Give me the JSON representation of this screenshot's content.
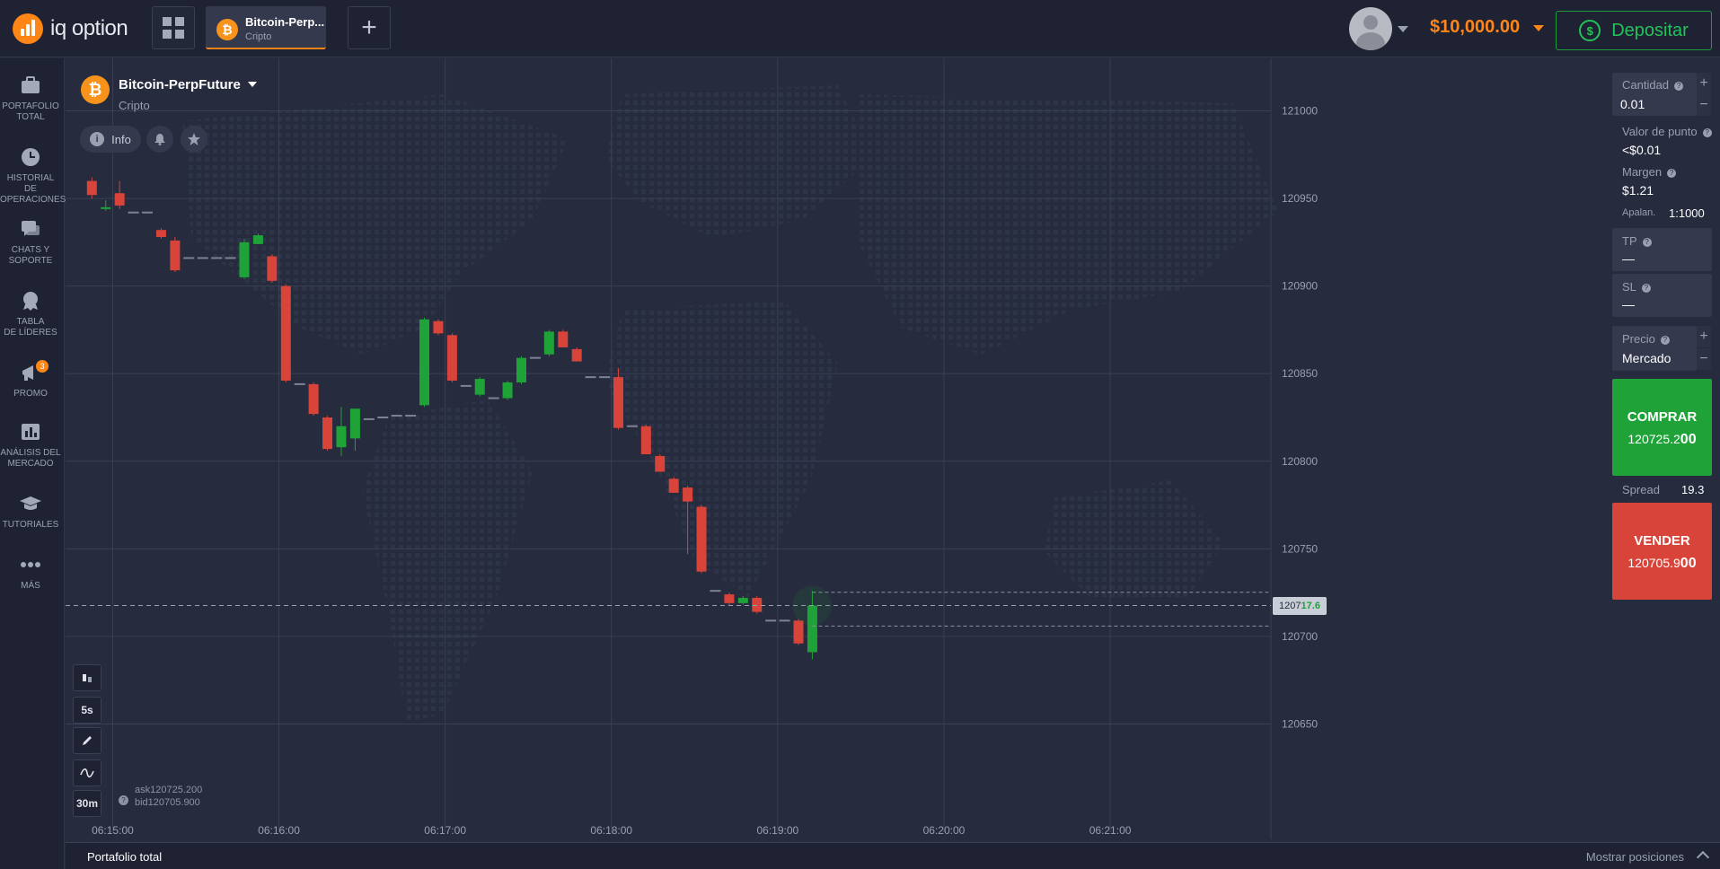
{
  "header": {
    "logo_text": "iq option",
    "asset_tab": {
      "name": "Bitcoin-Perp...",
      "category": "Cripto"
    },
    "add_label": "+",
    "balance": "$10,000.00",
    "deposit_label": "Depositar",
    "deposit_icon": "$"
  },
  "sidebar": {
    "items": [
      {
        "label1": "PORTAFOLIO",
        "label2": "TOTAL",
        "icon": "briefcase-icon"
      },
      {
        "label1": "HISTORIAL DE",
        "label2": "OPERACIONES",
        "icon": "clock-icon"
      },
      {
        "label1": "CHATS Y",
        "label2": "SOPORTE",
        "icon": "chat-icon"
      },
      {
        "label1": "TABLA",
        "label2": "DE LÍDERES",
        "icon": "trophy-icon"
      },
      {
        "label1": "PROMO",
        "label2": "",
        "icon": "megaphone-icon",
        "badge": "3"
      },
      {
        "label1": "ANÁLISIS DEL",
        "label2": "MERCADO",
        "icon": "chart-icon"
      },
      {
        "label1": "TUTORIALES",
        "label2": "",
        "icon": "graduation-cap-icon"
      },
      {
        "label1": "MÁS",
        "label2": "",
        "icon": "more-dots-icon"
      }
    ]
  },
  "chart_header": {
    "title": "Bitcoin-PerpFuture",
    "subtitle": "Cripto",
    "info_label": "Info",
    "info_icon": "i"
  },
  "toolbar": {
    "timeframe": "5s",
    "period": "30m",
    "help": "?"
  },
  "quotes": {
    "ask": "ask120725.200",
    "bid": "bid120705.900"
  },
  "current_price": {
    "prefix": "1207",
    "suffix": "17.6"
  },
  "panel": {
    "amount_label": "Cantidad",
    "amount_value": "0.01",
    "point_value_label": "Valor de punto",
    "point_value": "<$0.01",
    "margin_label": "Margen",
    "margin_value": "$1.21",
    "leverage_label": "Apalan.",
    "leverage_value": "1:1000",
    "tp_label": "TP",
    "tp_value": "—",
    "sl_label": "SL",
    "sl_value": "—",
    "price_label": "Precio",
    "price_value": "Mercado",
    "plus": "+",
    "minus": "−",
    "help": "?",
    "buy_label": "COMPRAR",
    "buy_price": "120725.2",
    "buy_price_tail": "00",
    "spread_label": "Spread",
    "spread_value": "19.3",
    "sell_label": "VENDER",
    "sell_price": "120705.9",
    "sell_price_tail": "00"
  },
  "footer": {
    "left": "Portafolio total",
    "right": "Mostrar posiciones"
  },
  "colors": {
    "up": "#1fa339",
    "down": "#d9443a",
    "accent": "#ff8516",
    "background": "#262b3e"
  },
  "chart_data": {
    "type": "candlestick",
    "ylim": [
      120620,
      121030
    ],
    "y_ticks": [
      121000,
      120950,
      120900,
      120850,
      120800,
      120750,
      120700,
      120650
    ],
    "x_ticks": [
      "06:15:00",
      "06:16:00",
      "06:17:00",
      "06:18:00",
      "06:19:00",
      "06:20:00",
      "06:21:00"
    ],
    "x_tick_seconds": [
      0,
      60,
      120,
      180,
      240,
      300,
      360
    ],
    "x_range_seconds": [
      -17,
      418
    ],
    "current_price": 120717.6,
    "ask": 120725.2,
    "bid": 120705.9,
    "candles": [
      {
        "t": -7.5,
        "o": 120960,
        "h": 120962,
        "l": 120950,
        "c": 120952
      },
      {
        "t": -2.5,
        "o": 120945,
        "h": 120949,
        "l": 120943,
        "c": 120945
      },
      {
        "t": 2.5,
        "o": 120953,
        "h": 120960,
        "l": 120944,
        "c": 120946
      },
      {
        "t": 7.5,
        "o": 120942,
        "h": 120943,
        "l": 120941,
        "c": 120942
      },
      {
        "t": 12.5,
        "o": 120942,
        "h": 120943,
        "l": 120941,
        "c": 120942
      },
      {
        "t": 17.5,
        "o": 120932,
        "h": 120933,
        "l": 120927,
        "c": 120928
      },
      {
        "t": 22.5,
        "o": 120926,
        "h": 120928,
        "l": 120908,
        "c": 120909
      },
      {
        "t": 27.5,
        "o": 120916,
        "h": 120917,
        "l": 120915,
        "c": 120916
      },
      {
        "t": 32.5,
        "o": 120916,
        "h": 120917,
        "l": 120915,
        "c": 120916
      },
      {
        "t": 37.5,
        "o": 120916,
        "h": 120917,
        "l": 120915,
        "c": 120916
      },
      {
        "t": 42.5,
        "o": 120916,
        "h": 120917,
        "l": 120915,
        "c": 120916
      },
      {
        "t": 47.5,
        "o": 120905,
        "h": 120927,
        "l": 120904,
        "c": 120925
      },
      {
        "t": 52.5,
        "o": 120924,
        "h": 120930,
        "l": 120924,
        "c": 120929
      },
      {
        "t": 57.5,
        "o": 120917,
        "h": 120918,
        "l": 120902,
        "c": 120903
      },
      {
        "t": 62.5,
        "o": 120900,
        "h": 120901,
        "l": 120845,
        "c": 120846
      },
      {
        "t": 67.5,
        "o": 120844,
        "h": 120845,
        "l": 120843,
        "c": 120844
      },
      {
        "t": 72.5,
        "o": 120844,
        "h": 120845,
        "l": 120826,
        "c": 120827
      },
      {
        "t": 77.5,
        "o": 120825,
        "h": 120826,
        "l": 120806,
        "c": 120807
      },
      {
        "t": 82.5,
        "o": 120808,
        "h": 120831,
        "l": 120803,
        "c": 120820
      },
      {
        "t": 87.5,
        "o": 120813,
        "h": 120830,
        "l": 120806,
        "c": 120830
      },
      {
        "t": 92.5,
        "o": 120824,
        "h": 120825,
        "l": 120823,
        "c": 120824
      },
      {
        "t": 97.5,
        "o": 120825,
        "h": 120826,
        "l": 120824,
        "c": 120825
      },
      {
        "t": 102.5,
        "o": 120826,
        "h": 120827,
        "l": 120825,
        "c": 120826
      },
      {
        "t": 107.5,
        "o": 120826,
        "h": 120827,
        "l": 120825,
        "c": 120826
      },
      {
        "t": 112.5,
        "o": 120832,
        "h": 120882,
        "l": 120831,
        "c": 120881
      },
      {
        "t": 117.5,
        "o": 120880,
        "h": 120881,
        "l": 120872,
        "c": 120873
      },
      {
        "t": 122.5,
        "o": 120872,
        "h": 120873,
        "l": 120845,
        "c": 120846
      },
      {
        "t": 127.5,
        "o": 120843,
        "h": 120844,
        "l": 120842,
        "c": 120843
      },
      {
        "t": 132.5,
        "o": 120838,
        "h": 120848,
        "l": 120837,
        "c": 120847
      },
      {
        "t": 137.5,
        "o": 120836,
        "h": 120837,
        "l": 120835,
        "c": 120836
      },
      {
        "t": 142.5,
        "o": 120836,
        "h": 120846,
        "l": 120835,
        "c": 120845
      },
      {
        "t": 147.5,
        "o": 120845,
        "h": 120860,
        "l": 120844,
        "c": 120859
      },
      {
        "t": 152.5,
        "o": 120859,
        "h": 120860,
        "l": 120858,
        "c": 120859
      },
      {
        "t": 157.5,
        "o": 120861,
        "h": 120875,
        "l": 120860,
        "c": 120874
      },
      {
        "t": 162.5,
        "o": 120874,
        "h": 120875,
        "l": 120865,
        "c": 120865
      },
      {
        "t": 167.5,
        "o": 120864,
        "h": 120865,
        "l": 120857,
        "c": 120857
      },
      {
        "t": 172.5,
        "o": 120848,
        "h": 120849,
        "l": 120847,
        "c": 120848
      },
      {
        "t": 177.5,
        "o": 120848,
        "h": 120849,
        "l": 120847,
        "c": 120848
      },
      {
        "t": 182.5,
        "o": 120848,
        "h": 120853,
        "l": 120818,
        "c": 120819
      },
      {
        "t": 187.5,
        "o": 120820,
        "h": 120821,
        "l": 120819,
        "c": 120820
      },
      {
        "t": 192.5,
        "o": 120820,
        "h": 120821,
        "l": 120804,
        "c": 120804
      },
      {
        "t": 197.5,
        "o": 120803,
        "h": 120804,
        "l": 120794,
        "c": 120794
      },
      {
        "t": 202.5,
        "o": 120790,
        "h": 120791,
        "l": 120782,
        "c": 120782
      },
      {
        "t": 207.5,
        "o": 120785,
        "h": 120786,
        "l": 120747,
        "c": 120777
      },
      {
        "t": 212.5,
        "o": 120774,
        "h": 120775,
        "l": 120736,
        "c": 120737
      },
      {
        "t": 217.5,
        "o": 120726,
        "h": 120727,
        "l": 120725,
        "c": 120726
      },
      {
        "t": 222.5,
        "o": 120724,
        "h": 120725,
        "l": 120718,
        "c": 120719
      },
      {
        "t": 227.5,
        "o": 120719,
        "h": 120723,
        "l": 120718,
        "c": 120722
      },
      {
        "t": 232.5,
        "o": 120722,
        "h": 120723,
        "l": 120713,
        "c": 120714
      },
      {
        "t": 237.5,
        "o": 120709,
        "h": 120710,
        "l": 120708,
        "c": 120709
      },
      {
        "t": 242.5,
        "o": 120709,
        "h": 120710,
        "l": 120708,
        "c": 120709
      },
      {
        "t": 247.5,
        "o": 120709,
        "h": 120710,
        "l": 120695,
        "c": 120696
      },
      {
        "t": 252.5,
        "o": 120691,
        "h": 120726,
        "l": 120687,
        "c": 120717.6
      }
    ]
  }
}
